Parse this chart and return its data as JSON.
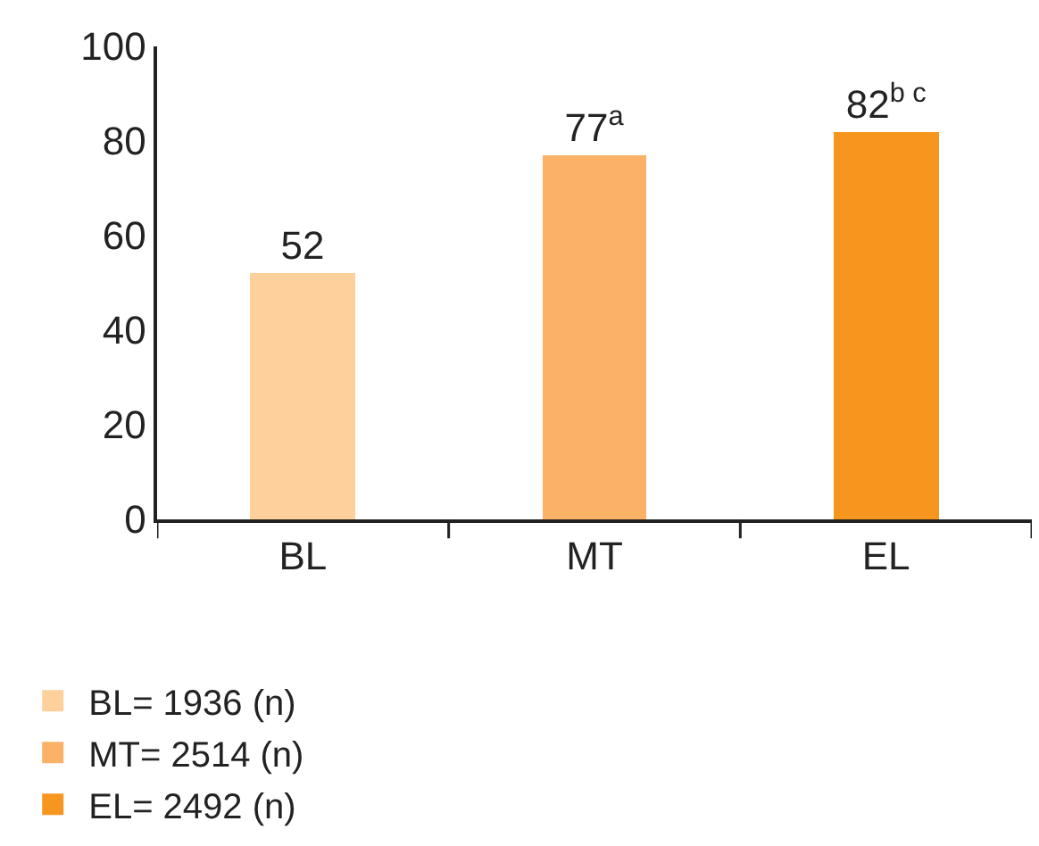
{
  "chart_data": {
    "type": "bar",
    "categories": [
      "BL",
      "MT",
      "EL"
    ],
    "series": [
      {
        "name": "BL= 1936 (n)",
        "color": "#fdd09c",
        "values": [
          52,
          null,
          null
        ],
        "value_labels": [
          "52",
          null,
          null
        ]
      },
      {
        "name": "MT= 2514 (n)",
        "color": "#fbb266",
        "values": [
          null,
          77,
          null
        ],
        "value_labels": [
          null,
          "77$^{a}$",
          null
        ]
      },
      {
        "name": "EL= 2492 (n)",
        "color": "#f7961f",
        "values": [
          null,
          null,
          82
        ],
        "value_labels": [
          null,
          null,
          "82$^{b c}$"
        ]
      }
    ],
    "ylim": [
      0,
      100
    ],
    "yticks": [
      0,
      20,
      40,
      60,
      80,
      100
    ],
    "grid": false,
    "legend": "bottom left"
  }
}
